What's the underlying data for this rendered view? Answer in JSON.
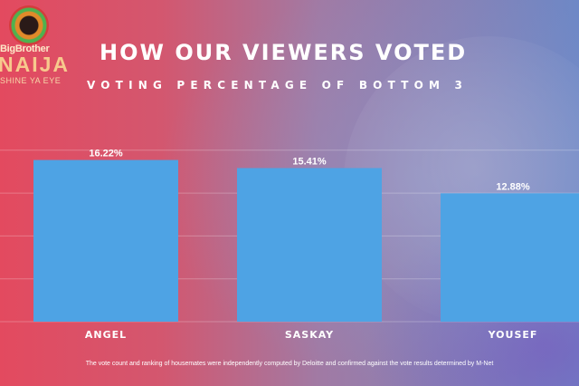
{
  "brand": {
    "line1": "BigBrother",
    "line2": "NAIJA",
    "line3": "SHINE YA EYE"
  },
  "header": {
    "title": "HOW OUR VIEWERS VOTED",
    "subtitle": "VOTING PERCENTAGE OF BOTTOM 3"
  },
  "footer": {
    "note": "The vote count and ranking of housemates were independently computed by Deloitte and confirmed against the vote results determined by M-Net"
  },
  "colors": {
    "bar": "#4ea3e4",
    "text": "#ffffff"
  },
  "chart_data": {
    "type": "bar",
    "title": "HOW OUR VIEWERS VOTED",
    "subtitle": "VOTING PERCENTAGE OF BOTTOM 3",
    "categories": [
      "ANGEL",
      "SASKAY",
      "YOUSEF"
    ],
    "values": [
      16.22,
      15.41,
      12.88
    ],
    "value_labels": [
      "16.22%",
      "15.41%",
      "12.88%"
    ],
    "xlabel": "",
    "ylabel": "",
    "ylim": [
      0,
      20
    ],
    "grid": true
  }
}
